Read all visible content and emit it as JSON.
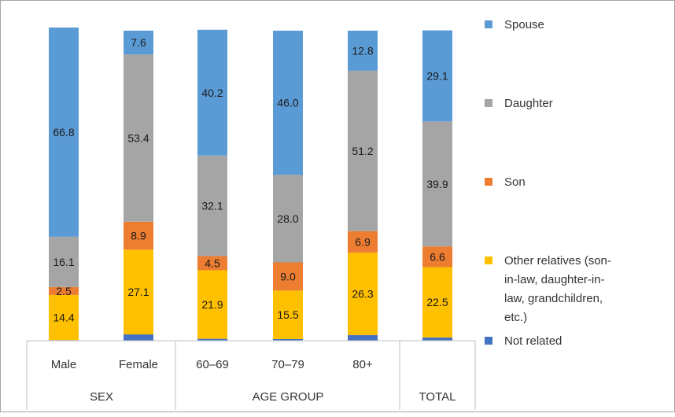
{
  "chart_data": {
    "type": "bar",
    "stacked": true,
    "stack_order_bottom_to_top": [
      "Not related",
      "Other relatives (son-in-law, daughter-in-law, grandchildren, etc.)",
      "Son",
      "Daughter",
      "Spouse"
    ],
    "categories": [
      "Male",
      "Female",
      "60–69",
      "70–79",
      "80+",
      "TOTAL"
    ],
    "groups": [
      {
        "label": "SEX",
        "categories": [
          "Male",
          "Female"
        ]
      },
      {
        "label": "AGE GROUP",
        "categories": [
          "60–69",
          "70–79",
          "80+"
        ]
      },
      {
        "label": "TOTAL",
        "categories": [
          "TOTAL"
        ]
      }
    ],
    "category_labels": [
      "Male",
      "Female",
      "60–69",
      "70–79",
      "80+",
      ""
    ],
    "series": [
      {
        "name": "Not related",
        "color": "#4472c4",
        "values": [
          0.2,
          2.0,
          0.6,
          0.5,
          1.8,
          1.0
        ],
        "labels": [
          "",
          "",
          "",
          "",
          "",
          ""
        ]
      },
      {
        "name": "Other relatives (son-in-law, daughter-in-law, grandchildren, etc.)",
        "color": "#ffc000",
        "values": [
          14.4,
          27.1,
          21.9,
          15.5,
          26.3,
          22.5
        ],
        "labels": [
          "14.4",
          "27.1",
          "21.9",
          "15.5",
          "26.3",
          "22.5"
        ]
      },
      {
        "name": "Son",
        "color": "#ed7d31",
        "values": [
          2.5,
          8.9,
          4.5,
          9.0,
          6.9,
          6.6
        ],
        "labels": [
          "2.5",
          "8.9",
          "4.5",
          "9.0",
          "6.9",
          "6.6"
        ]
      },
      {
        "name": "Daughter",
        "color": "#a5a5a5",
        "values": [
          16.1,
          53.4,
          32.1,
          28.0,
          51.2,
          39.9
        ],
        "labels": [
          "16.1",
          "53.4",
          "32.1",
          "28.0",
          "51.2",
          "39.9"
        ]
      },
      {
        "name": "Spouse",
        "color": "#5b9bd5",
        "values": [
          66.8,
          7.6,
          40.2,
          46.0,
          12.8,
          29.1
        ],
        "labels": [
          "66.8",
          "7.6",
          "40.2",
          "46.0",
          "12.8",
          "29.1"
        ]
      }
    ],
    "legend_order": [
      "Spouse",
      "Daughter",
      "Son",
      "Other relatives (son-in-law, daughter-in-law, grandchildren, etc.)",
      "Not related"
    ],
    "legend_text_lines": {
      "Spouse": [
        "Spouse"
      ],
      "Daughter": [
        "Daughter"
      ],
      "Son": [
        "Son"
      ],
      "Other relatives (son-in-law, daughter-in-law, grandchildren, etc.)": [
        "Other relatives (son-",
        "in-law, daughter-in-",
        "law, grandchildren,",
        "etc.)"
      ],
      "Not related": [
        "Not related"
      ]
    },
    "legend_position": "right",
    "ylim": [
      0,
      100
    ],
    "grid": false,
    "title": "",
    "xlabel": "",
    "ylabel": ""
  }
}
